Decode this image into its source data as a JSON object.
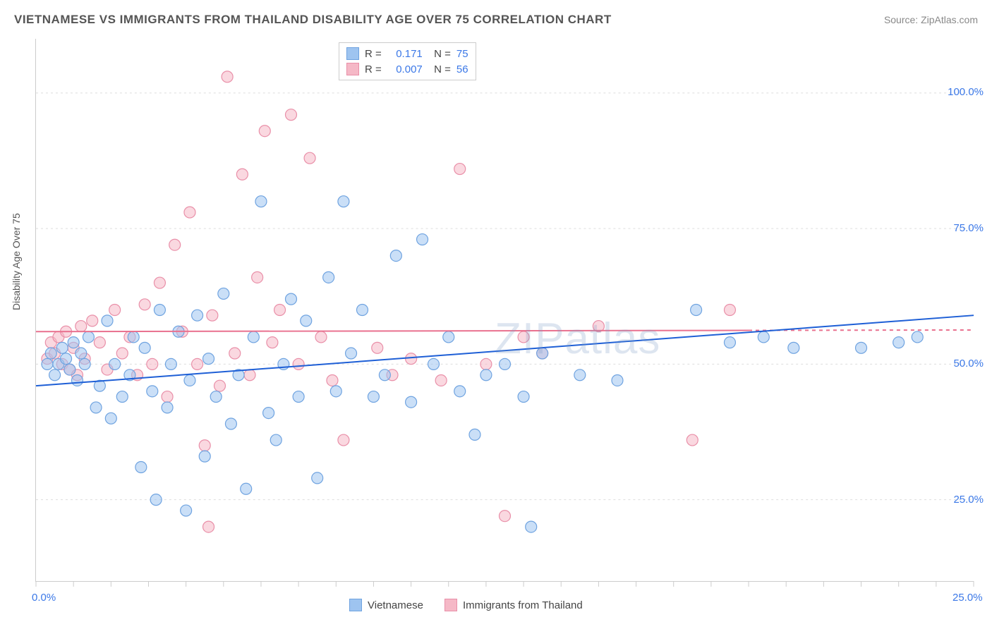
{
  "title": "VIETNAMESE VS IMMIGRANTS FROM THAILAND DISABILITY AGE OVER 75 CORRELATION CHART",
  "source": "Source: ZipAtlas.com",
  "ylabel": "Disability Age Over 75",
  "watermark": "ZIPatlas",
  "chart": {
    "type": "scatter",
    "xlim": [
      0,
      25
    ],
    "ylim": [
      10,
      110
    ],
    "ytick_values": [
      25,
      50,
      75,
      100
    ],
    "ytick_labels": [
      "25.0%",
      "50.0%",
      "75.0%",
      "100.0%"
    ],
    "xtick_left": "0.0%",
    "xtick_right": "25.0%",
    "x_minor_tick_count": 25,
    "grid_color": "#dddddd",
    "background": "#ffffff",
    "marker_radius": 8,
    "marker_opacity": 0.55,
    "series_a": {
      "name": "Vietnamese",
      "color_fill": "#9ec4f0",
      "color_stroke": "#6fa3e0",
      "R": "0.171",
      "N": "75",
      "trend": {
        "y_at_x0": 46,
        "y_at_x25": 59,
        "color": "#1e5fd6",
        "width": 2
      },
      "points": [
        [
          0.3,
          50
        ],
        [
          0.4,
          52
        ],
        [
          0.5,
          48
        ],
        [
          0.6,
          50
        ],
        [
          0.7,
          53
        ],
        [
          0.8,
          51
        ],
        [
          0.9,
          49
        ],
        [
          1.0,
          54
        ],
        [
          1.1,
          47
        ],
        [
          1.2,
          52
        ],
        [
          1.3,
          50
        ],
        [
          1.4,
          55
        ],
        [
          1.6,
          42
        ],
        [
          1.7,
          46
        ],
        [
          1.9,
          58
        ],
        [
          2.0,
          40
        ],
        [
          2.1,
          50
        ],
        [
          2.3,
          44
        ],
        [
          2.5,
          48
        ],
        [
          2.6,
          55
        ],
        [
          2.8,
          31
        ],
        [
          2.9,
          53
        ],
        [
          3.1,
          45
        ],
        [
          3.2,
          25
        ],
        [
          3.3,
          60
        ],
        [
          3.5,
          42
        ],
        [
          3.6,
          50
        ],
        [
          3.8,
          56
        ],
        [
          4.0,
          23
        ],
        [
          4.1,
          47
        ],
        [
          4.3,
          59
        ],
        [
          4.5,
          33
        ],
        [
          4.6,
          51
        ],
        [
          4.8,
          44
        ],
        [
          5.0,
          63
        ],
        [
          5.2,
          39
        ],
        [
          5.4,
          48
        ],
        [
          5.6,
          27
        ],
        [
          5.8,
          55
        ],
        [
          6.0,
          80
        ],
        [
          6.2,
          41
        ],
        [
          6.4,
          36
        ],
        [
          6.6,
          50
        ],
        [
          6.8,
          62
        ],
        [
          7.0,
          44
        ],
        [
          7.2,
          58
        ],
        [
          7.5,
          29
        ],
        [
          7.8,
          66
        ],
        [
          8.0,
          45
        ],
        [
          8.2,
          80
        ],
        [
          8.4,
          52
        ],
        [
          8.7,
          60
        ],
        [
          9.0,
          44
        ],
        [
          9.3,
          48
        ],
        [
          9.6,
          70
        ],
        [
          10.0,
          43
        ],
        [
          10.3,
          73
        ],
        [
          10.6,
          50
        ],
        [
          11.0,
          55
        ],
        [
          11.3,
          45
        ],
        [
          11.7,
          37
        ],
        [
          12.0,
          48
        ],
        [
          12.5,
          50
        ],
        [
          13.0,
          44
        ],
        [
          13.2,
          20
        ],
        [
          13.5,
          52
        ],
        [
          14.5,
          48
        ],
        [
          15.5,
          47
        ],
        [
          17.6,
          60
        ],
        [
          18.5,
          54
        ],
        [
          19.4,
          55
        ],
        [
          20.2,
          53
        ],
        [
          22.0,
          53
        ],
        [
          23.0,
          54
        ],
        [
          23.5,
          55
        ]
      ]
    },
    "series_b": {
      "name": "Immigrants from Thailand",
      "color_fill": "#f5b8c6",
      "color_stroke": "#e98fa8",
      "R": "0.007",
      "N": "56",
      "trend": {
        "y_at_x0": 56,
        "y_at_x25": 56.3,
        "color": "#e9718f",
        "width": 2,
        "dash_after_x": 19
      },
      "points": [
        [
          0.3,
          51
        ],
        [
          0.4,
          54
        ],
        [
          0.5,
          52
        ],
        [
          0.6,
          55
        ],
        [
          0.7,
          50
        ],
        [
          0.8,
          56
        ],
        [
          0.9,
          49
        ],
        [
          1.0,
          53
        ],
        [
          1.1,
          48
        ],
        [
          1.2,
          57
        ],
        [
          1.3,
          51
        ],
        [
          1.5,
          58
        ],
        [
          1.7,
          54
        ],
        [
          1.9,
          49
        ],
        [
          2.1,
          60
        ],
        [
          2.3,
          52
        ],
        [
          2.5,
          55
        ],
        [
          2.7,
          48
        ],
        [
          2.9,
          61
        ],
        [
          3.1,
          50
        ],
        [
          3.3,
          65
        ],
        [
          3.5,
          44
        ],
        [
          3.7,
          72
        ],
        [
          3.9,
          56
        ],
        [
          4.1,
          78
        ],
        [
          4.3,
          50
        ],
        [
          4.5,
          35
        ],
        [
          4.6,
          20
        ],
        [
          4.7,
          59
        ],
        [
          4.9,
          46
        ],
        [
          5.1,
          103
        ],
        [
          5.3,
          52
        ],
        [
          5.5,
          85
        ],
        [
          5.7,
          48
        ],
        [
          5.9,
          66
        ],
        [
          6.1,
          93
        ],
        [
          6.3,
          54
        ],
        [
          6.5,
          60
        ],
        [
          6.8,
          96
        ],
        [
          7.0,
          50
        ],
        [
          7.3,
          88
        ],
        [
          7.6,
          55
        ],
        [
          7.9,
          47
        ],
        [
          8.2,
          36
        ],
        [
          9.1,
          53
        ],
        [
          9.5,
          48
        ],
        [
          10.0,
          51
        ],
        [
          10.8,
          47
        ],
        [
          11.3,
          86
        ],
        [
          12.0,
          50
        ],
        [
          12.5,
          22
        ],
        [
          13.0,
          55
        ],
        [
          13.5,
          52
        ],
        [
          15.0,
          57
        ],
        [
          17.5,
          36
        ],
        [
          18.5,
          60
        ]
      ]
    }
  },
  "legend_top_rows": [
    {
      "swatch_fill": "#9ec4f0",
      "swatch_stroke": "#6fa3e0",
      "R": "0.171",
      "N": "75"
    },
    {
      "swatch_fill": "#f5b8c6",
      "swatch_stroke": "#e98fa8",
      "R": "0.007",
      "N": "56"
    }
  ],
  "legend_bottom": [
    {
      "swatch_fill": "#9ec4f0",
      "swatch_stroke": "#6fa3e0",
      "label": "Vietnamese"
    },
    {
      "swatch_fill": "#f5b8c6",
      "swatch_stroke": "#e98fa8",
      "label": "Immigrants from Thailand"
    }
  ]
}
